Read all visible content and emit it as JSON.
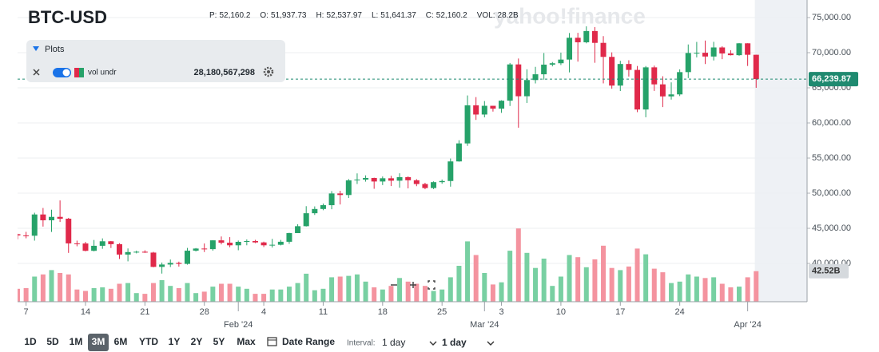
{
  "header": {
    "symbol": "BTC-USD",
    "stats": [
      {
        "label": "P:",
        "value": "52,160.2"
      },
      {
        "label": "O:",
        "value": "51,937.73"
      },
      {
        "label": "H:",
        "value": "52,537.97"
      },
      {
        "label": "L:",
        "value": "51,641.37"
      },
      {
        "label": "C:",
        "value": "52,160.2"
      },
      {
        "label": "VOL:",
        "value": "28.2B"
      }
    ]
  },
  "watermark": "yahoo!finance",
  "plots_panel": {
    "title": "Plots",
    "indicator": "vol undr",
    "value": "28,180,567,298"
  },
  "toolbar": {
    "ranges": [
      "1D",
      "5D",
      "1M",
      "3M",
      "6M",
      "YTD",
      "1Y",
      "2Y",
      "5Y",
      "Max"
    ],
    "active_range": 3,
    "date_range": "Date Range",
    "interval_label": "Interval:",
    "interval_value": "1 day",
    "interval_select": "1 day"
  },
  "chart_data": {
    "type": "candlestick",
    "up_color": "#26a269",
    "down_color": "#e0294a",
    "volume_up_color": "#78d0a2",
    "volume_down_color": "#f4939f",
    "grid": true,
    "x": [
      "2024-01-06",
      "2024-01-07",
      "2024-01-08",
      "2024-01-09",
      "2024-01-10",
      "2024-01-11",
      "2024-01-12",
      "2024-01-13",
      "2024-01-14",
      "2024-01-15",
      "2024-01-16",
      "2024-01-17",
      "2024-01-18",
      "2024-01-19",
      "2024-01-20",
      "2024-01-21",
      "2024-01-22",
      "2024-01-23",
      "2024-01-24",
      "2024-01-25",
      "2024-01-26",
      "2024-01-27",
      "2024-01-28",
      "2024-01-29",
      "2024-01-30",
      "2024-01-31",
      "2024-02-01",
      "2024-02-02",
      "2024-02-03",
      "2024-02-04",
      "2024-02-05",
      "2024-02-06",
      "2024-02-07",
      "2024-02-08",
      "2024-02-09",
      "2024-02-10",
      "2024-02-11",
      "2024-02-12",
      "2024-02-13",
      "2024-02-14",
      "2024-02-15",
      "2024-02-16",
      "2024-02-17",
      "2024-02-18",
      "2024-02-19",
      "2024-02-20",
      "2024-02-21",
      "2024-02-22",
      "2024-02-23",
      "2024-02-24",
      "2024-02-25",
      "2024-02-26",
      "2024-02-27",
      "2024-02-28",
      "2024-02-29",
      "2024-03-01",
      "2024-03-02",
      "2024-03-03",
      "2024-03-04",
      "2024-03-05",
      "2024-03-06",
      "2024-03-07",
      "2024-03-08",
      "2024-03-09",
      "2024-03-10",
      "2024-03-11",
      "2024-03-12",
      "2024-03-13",
      "2024-03-14",
      "2024-03-15",
      "2024-03-16",
      "2024-03-17",
      "2024-03-18",
      "2024-03-19",
      "2024-03-20",
      "2024-03-21",
      "2024-03-22",
      "2024-03-23",
      "2024-03-24",
      "2024-03-25",
      "2024-03-26",
      "2024-03-27",
      "2024-03-28",
      "2024-03-29",
      "2024-03-30",
      "2024-03-31",
      "2024-04-01",
      "2024-04-02"
    ],
    "open": [
      44162,
      43989,
      43943,
      46970,
      46139,
      46627,
      46368,
      42853,
      42842,
      41796,
      42511,
      43154,
      42742,
      41262,
      41618,
      41665,
      41545,
      39507,
      39845,
      40077,
      39933,
      41816,
      42120,
      42035,
      43288,
      42952,
      42582,
      43075,
      43185,
      42992,
      42583,
      42658,
      43084,
      44318,
      45301,
      47147,
      47751,
      48293,
      49958,
      49742,
      51826,
      51938,
      52160,
      51663,
      52122,
      51779,
      52284,
      51839,
      51304,
      50731,
      51571,
      51733,
      54522,
      57085,
      62504,
      61198,
      62440,
      62029,
      63167,
      68330,
      63801,
      66106,
      66925,
      68300,
      68498,
      69019,
      72123,
      71481,
      73083,
      71397,
      69403,
      65315,
      68391,
      67548,
      61912,
      67913,
      65491,
      63779,
      64062,
      67234,
      69958,
      69987,
      69455,
      70744,
      69892,
      69646,
      71333,
      69702
    ],
    "high": [
      44217,
      44496,
      47218,
      47893,
      47647,
      48970,
      46485,
      43247,
      43065,
      43339,
      43566,
      43199,
      42876,
      42134,
      41818,
      41872,
      41651,
      40129,
      40555,
      40254,
      42209,
      42197,
      42842,
      43305,
      43838,
      43745,
      43260,
      43422,
      43359,
      43101,
      43494,
      43344,
      44369,
      45575,
      48152,
      48119,
      48520,
      50299,
      50344,
      52016,
      52817,
      52538,
      52209,
      52378,
      52474,
      52830,
      52384,
      52000,
      51479,
      51684,
      51946,
      54938,
      57537,
      63913,
      63677,
      63115,
      62434,
      63230,
      68537,
      69170,
      67637,
      67985,
      69955,
      68673,
      70012,
      72800,
      72826,
      73750,
      73637,
      72358,
      70044,
      68845,
      68920,
      68106,
      68100,
      68161,
      66650,
      65777,
      67626,
      71170,
      71535,
      71727,
      71546,
      70913,
      70355,
      71367,
      71342,
      69708
    ],
    "low": [
      43440,
      43576,
      43244,
      45245,
      44483,
      45899,
      41500,
      42441,
      41725,
      41720,
      42085,
      42200,
      40631,
      40297,
      41431,
      41500,
      39450,
      38555,
      39485,
      39550,
      39826,
      41702,
      41621,
      41818,
      42712,
      42298,
      41880,
      42585,
      42891,
      42333,
      42259,
      42565,
      42788,
      44331,
      45255,
      46906,
      47577,
      47715,
      48391,
      49316,
      51307,
      51641,
      50625,
      51156,
      51015,
      50780,
      50682,
      50996,
      50564,
      50585,
      51340,
      50931,
      54484,
      56738,
      60432,
      60793,
      61617,
      61435,
      62414,
      59323,
      62848,
      65624,
      66157,
      68052,
      68239,
      67195,
      68728,
      71335,
      68563,
      65631,
      64870,
      64545,
      66601,
      61536,
      60807,
      64559,
      62260,
      63322,
      63825,
      66385,
      69335,
      68382,
      68895,
      69077,
      69601,
      69562,
      68110,
      65000
    ],
    "close": [
      43989,
      43943,
      46970,
      46139,
      46627,
      46368,
      42853,
      42842,
      41796,
      42511,
      43154,
      42742,
      41262,
      41618,
      41665,
      41545,
      39507,
      39845,
      40077,
      39933,
      41816,
      42120,
      42035,
      43288,
      42952,
      42582,
      43075,
      43185,
      42992,
      42583,
      42658,
      43084,
      44318,
      45301,
      47147,
      47751,
      48293,
      49958,
      49742,
      51826,
      51938,
      52160,
      51663,
      52122,
      51779,
      52284,
      51839,
      51304,
      50731,
      51571,
      51733,
      54522,
      57085,
      62504,
      61198,
      62440,
      62029,
      63167,
      68330,
      63801,
      66106,
      66925,
      68300,
      68498,
      69019,
      72123,
      71481,
      73083,
      71397,
      69403,
      65315,
      68391,
      67548,
      61912,
      67913,
      65491,
      63779,
      64062,
      67234,
      69958,
      69987,
      69455,
      70744,
      69892,
      69646,
      71333,
      69702,
      66239.87
    ],
    "volume": [
      18,
      19,
      35,
      38,
      44,
      40,
      38,
      17,
      15,
      19,
      20,
      18,
      25,
      26,
      12,
      11,
      26,
      30,
      22,
      19,
      26,
      12,
      14,
      21,
      25,
      25,
      21,
      18,
      11,
      11,
      17,
      17,
      21,
      26,
      39,
      16,
      18,
      34,
      35,
      36,
      38,
      28,
      20,
      17,
      22,
      33,
      28,
      25,
      22,
      15,
      17,
      34,
      50,
      84,
      65,
      40,
      24,
      27,
      71,
      102,
      68,
      47,
      60,
      22,
      35,
      65,
      62,
      48,
      59,
      78,
      47,
      44,
      49,
      74,
      66,
      46,
      41,
      26,
      28,
      38,
      35,
      33,
      34,
      25,
      20,
      21,
      34,
      42.52
    ],
    "xlim": [
      "2024-01-06",
      "2024-04-08"
    ],
    "xticks": [
      {
        "value": "2024-01-07",
        "label": "7"
      },
      {
        "value": "2024-01-14",
        "label": "14"
      },
      {
        "value": "2024-01-21",
        "label": "21"
      },
      {
        "value": "2024-01-28",
        "label": "28"
      },
      {
        "value": "2024-02-04",
        "label": "4"
      },
      {
        "value": "2024-02-11",
        "label": "11"
      },
      {
        "value": "2024-02-18",
        "label": "18"
      },
      {
        "value": "2024-02-25",
        "label": "25"
      },
      {
        "value": "2024-03-03",
        "label": "3"
      },
      {
        "value": "2024-03-10",
        "label": "10"
      },
      {
        "value": "2024-03-17",
        "label": "17"
      },
      {
        "value": "2024-03-24",
        "label": "24"
      }
    ],
    "x_month_ticks": [
      {
        "value": "2024-02-01",
        "label": "Feb '24"
      },
      {
        "value": "2024-03-01",
        "label": "Mar '24"
      },
      {
        "value": "2024-04-01",
        "label": "Apr '24"
      }
    ],
    "ylim": [
      34550,
      77500
    ],
    "yticks": [
      {
        "value": 40000,
        "label": "40,000.00"
      },
      {
        "value": 45000,
        "label": "45,000.00"
      },
      {
        "value": 50000,
        "label": "50,000.00"
      },
      {
        "value": 55000,
        "label": "55,000.00"
      },
      {
        "value": 60000,
        "label": "60,000.00"
      },
      {
        "value": 65000,
        "label": "65,000.00"
      },
      {
        "value": 70000,
        "label": "70,000.00"
      },
      {
        "value": 75000,
        "label": "75,000.00"
      }
    ],
    "y2lim": [
      0,
      420
    ],
    "last_price": {
      "value": 66239.87,
      "label": "66,239.87"
    },
    "last_volume": {
      "value": 42.52,
      "label": "42.52B"
    },
    "highlight_start": "2024-04-01"
  }
}
